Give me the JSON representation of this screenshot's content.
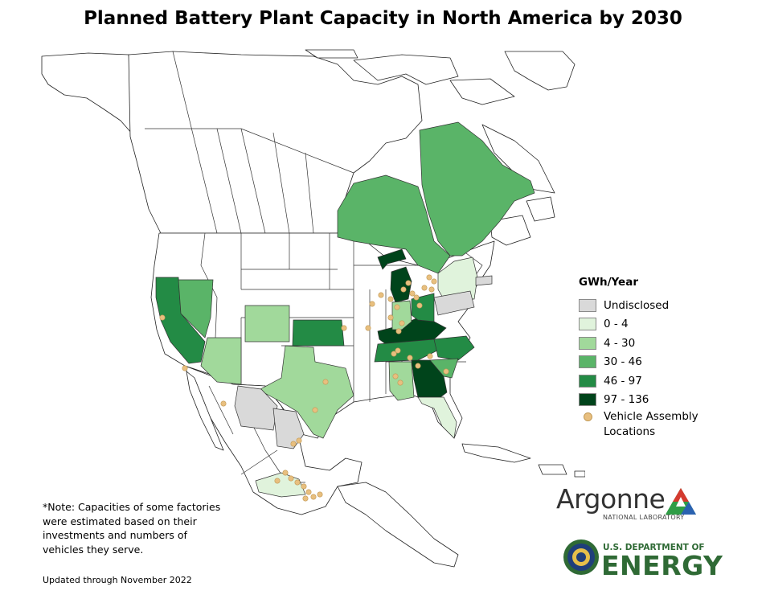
{
  "title": "Planned Battery Plant Capacity in North America by 2030",
  "legend": {
    "title": "GWh/Year",
    "items": [
      {
        "label": "Undisclosed",
        "color": "#d9d9d9"
      },
      {
        "label": "0 - 4",
        "color": "#e0f3dc"
      },
      {
        "label": "4 - 30",
        "color": "#a1d99b"
      },
      {
        "label": "30 - 46",
        "color": "#5ab468"
      },
      {
        "label": "46 - 97",
        "color": "#238b45"
      },
      {
        "label": "97 - 136",
        "color": "#00441b"
      }
    ],
    "vehicle_label_line1": "Vehicle Assembly",
    "vehicle_label_line2": "Locations",
    "vehicle_color": "#e8bf7f"
  },
  "note": {
    "line1": "*Note: Capacities of some factories",
    "line2": "were estimated based on their",
    "line3": "investments and numbers of",
    "line4": "vehicles they serve."
  },
  "updated": "Updated through November 2022",
  "logos": {
    "argonne_name": "Argonne",
    "argonne_sub": "NATIONAL LABORATORY",
    "doe_top": "U.S. DEPARTMENT OF",
    "doe_main": "ENERGY"
  },
  "regions": [
    {
      "name": "Michigan",
      "category": "97 - 136"
    },
    {
      "name": "Kentucky",
      "category": "97 - 136"
    },
    {
      "name": "Georgia",
      "category": "97 - 136"
    },
    {
      "name": "California",
      "category": "46 - 97"
    },
    {
      "name": "Kansas",
      "category": "46 - 97"
    },
    {
      "name": "Ohio",
      "category": "46 - 97"
    },
    {
      "name": "Tennessee",
      "category": "46 - 97"
    },
    {
      "name": "North Carolina",
      "category": "46 - 97"
    },
    {
      "name": "Ontario",
      "category": "30 - 46"
    },
    {
      "name": "Quebec",
      "category": "30 - 46"
    },
    {
      "name": "Nevada",
      "category": "30 - 46"
    },
    {
      "name": "South Carolina",
      "category": "30 - 46"
    },
    {
      "name": "Arizona",
      "category": "4 - 30"
    },
    {
      "name": "Colorado",
      "category": "4 - 30"
    },
    {
      "name": "Texas",
      "category": "4 - 30"
    },
    {
      "name": "Indiana",
      "category": "4 - 30"
    },
    {
      "name": "Alabama",
      "category": "4 - 30"
    },
    {
      "name": "New York",
      "category": "0 - 4"
    },
    {
      "name": "Florida",
      "category": "0 - 4"
    },
    {
      "name": "Central Mexico",
      "category": "0 - 4"
    },
    {
      "name": "Pennsylvania",
      "category": "Undisclosed"
    },
    {
      "name": "Massachusetts",
      "category": "Undisclosed"
    },
    {
      "name": "Chihuahua",
      "category": "Undisclosed"
    },
    {
      "name": "Coahuila",
      "category": "Undisclosed"
    }
  ]
}
